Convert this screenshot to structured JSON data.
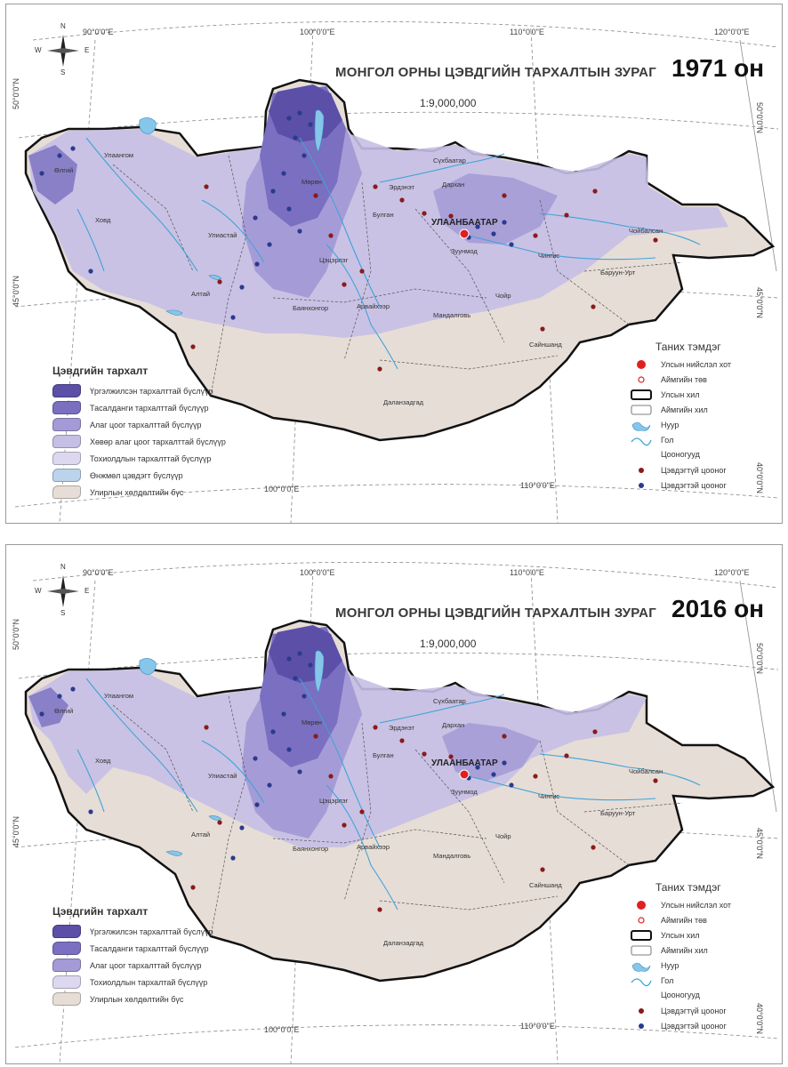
{
  "maps": [
    {
      "year_label": "1971 он",
      "title": "МОНГОЛ ОРНЫ ЦЭВДГИЙН ТАРХАЛТЫН ЗУРАГ",
      "scale": "1:9,000,000",
      "legend_title": "Цэвдгийн тархалт",
      "legend_items": [
        {
          "label": "Үргэлжилсэн тархалттай бүслүүр",
          "color": "#5b4fa8"
        },
        {
          "label": "Тасалданги тархалттай бүслүүр",
          "color": "#7a6fc0"
        },
        {
          "label": "Алаг цоог тархалттай бүслүүр",
          "color": "#a39ad6"
        },
        {
          "label": "Хөвөр алаг цоог тархалттай бүслүүр",
          "color": "#c5bfe6"
        },
        {
          "label": "Тохиолдлын тархалттай бүслүүр",
          "color": "#ddd8f0"
        },
        {
          "label": "Өнжмөл цэвдэгт бүслүүр",
          "color": "#bcd3ec"
        },
        {
          "label": "Улирлын хөлдөлтийн бүс",
          "color": "#e6ddd6"
        }
      ]
    },
    {
      "year_label": "2016 он",
      "title": "МОНГОЛ ОРНЫ ЦЭВДГИЙН ТАРХАЛТЫН ЗУРАГ",
      "scale": "1:9,000,000",
      "legend_title": "Цэвдгийн тархалт",
      "legend_items": [
        {
          "label": "Үргэлжилсэн тархалттай бүслүүр",
          "color": "#5b4fa8"
        },
        {
          "label": "Тасалданги тархалттай бүслүүр",
          "color": "#7a6fc0"
        },
        {
          "label": "Алаг цоог тархалттай бүслүүр",
          "color": "#a39ad6"
        },
        {
          "label": "Тохиолдлын тархалтай бүслүүр",
          "color": "#ddd8f0"
        },
        {
          "label": "Улирлын хөлдөлтийн бүс",
          "color": "#e6ddd6"
        }
      ]
    }
  ],
  "symbols": {
    "title": "Таних тэмдэг",
    "capital": "Улсын нийслэл хот",
    "aimag_center": "Аймгийн төв",
    "state_border": "Улсын хил",
    "aimag_border": "Аймгийн хил",
    "lake": "Нуур",
    "river": "Гол",
    "wells_title": "Цооногууд",
    "well_without": "Цэвдэгтүй цооног",
    "well_with": "Цэвдэгтэй цооног"
  },
  "coords": {
    "lon90": "90°0'0\"E",
    "lon100": "100°0'0\"E",
    "lon110": "110°0'0\"E",
    "lon120": "120°0'0\"E",
    "lat50": "50°0'0\"N",
    "lat45": "45°0'0\"N",
    "lat40": "40°0'0\"N"
  },
  "compass": {
    "n": "N",
    "s": "S",
    "e": "E",
    "w": "W"
  },
  "places": {
    "capital": "УЛААНБААТАР",
    "ulaangom": "Улаангом",
    "olgii": "Өлгий",
    "khovd": "Ховд",
    "uliastai": "Улиастай",
    "altai": "Алтай",
    "moron": "Мөрөн",
    "tsetserleg": "Цэцэрлэг",
    "bayankhongor": "Баянхонгор",
    "arvaikheer": "Арвайхээр",
    "bulgan": "Булган",
    "erdenet": "Эрдэнэт",
    "sukhbaatar": "Сүхбаатар",
    "darkhan": "Дархан",
    "zuunmod": "Зуунмод",
    "chinggis": "Чингис",
    "choibalsan": "Чойбалсан",
    "baruun_urt": "Баруун-Урт",
    "choir": "Чойр",
    "mandalgovi": "Мандалговь",
    "sainshand": "Сайншанд",
    "dalanzadgad": "Даланзадгад"
  }
}
